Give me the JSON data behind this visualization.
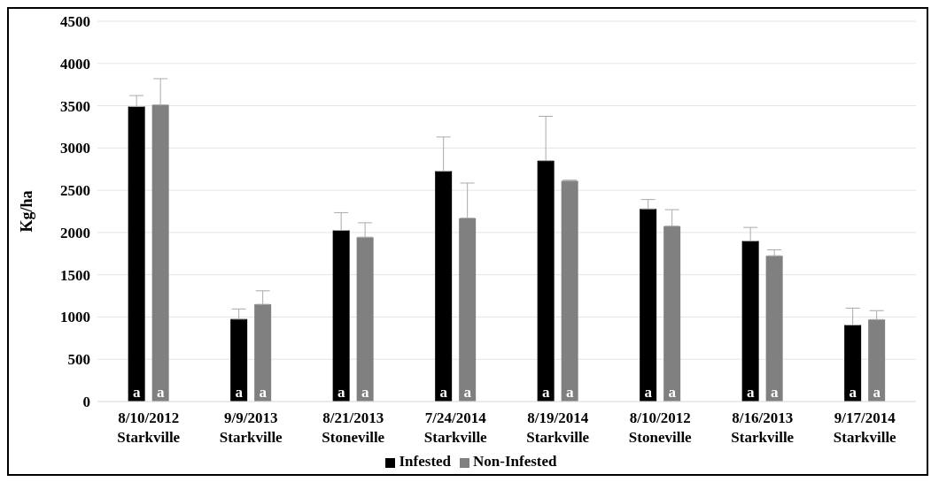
{
  "chart_data": {
    "type": "bar",
    "ylabel": "Kg/ha",
    "categories": [
      "8/10/2012 Starkville",
      "9/9/2013 Starkville",
      "8/21/2013 Stoneville",
      "7/24/2014 Starkville",
      "8/19/2014 Starkville",
      "8/10/2012 Stoneville",
      "8/16/2013 Starkville",
      "9/17/2014 Starkville"
    ],
    "series": [
      {
        "name": "Infested",
        "color": "#000000",
        "values": [
          3490,
          975,
          2025,
          2725,
          2850,
          2280,
          1900,
          905
        ],
        "errors": [
          [
            3490,
            3620
          ],
          [
            975,
            1095
          ],
          [
            2025,
            2235
          ],
          [
            2725,
            3130
          ],
          [
            2850,
            3375
          ],
          [
            2280,
            2390
          ],
          [
            1900,
            2060
          ],
          [
            905,
            1105
          ]
        ],
        "value_labels": [
          "a",
          "a",
          "a",
          "a",
          "a",
          "a",
          "a",
          "a"
        ]
      },
      {
        "name": "Non-Infested",
        "color": "#808080",
        "values": [
          3510,
          1150,
          1945,
          2170,
          2610,
          2075,
          1725,
          970
        ],
        "errors": [
          [
            3510,
            3820
          ],
          [
            1150,
            1310
          ],
          [
            1945,
            2115
          ],
          [
            2170,
            2585
          ],
          [
            2610,
            2620
          ],
          [
            2075,
            2270
          ],
          [
            1725,
            1795
          ],
          [
            970,
            1075
          ]
        ],
        "value_labels": [
          "a",
          "a",
          "a",
          "a",
          "a",
          "a",
          "a",
          "a"
        ]
      }
    ],
    "ylim": [
      0,
      4500
    ],
    "yticks": [
      0,
      500,
      1000,
      1500,
      2000,
      2500,
      3000,
      3500,
      4000,
      4500
    ],
    "grid": "y",
    "legend": "bottom"
  }
}
